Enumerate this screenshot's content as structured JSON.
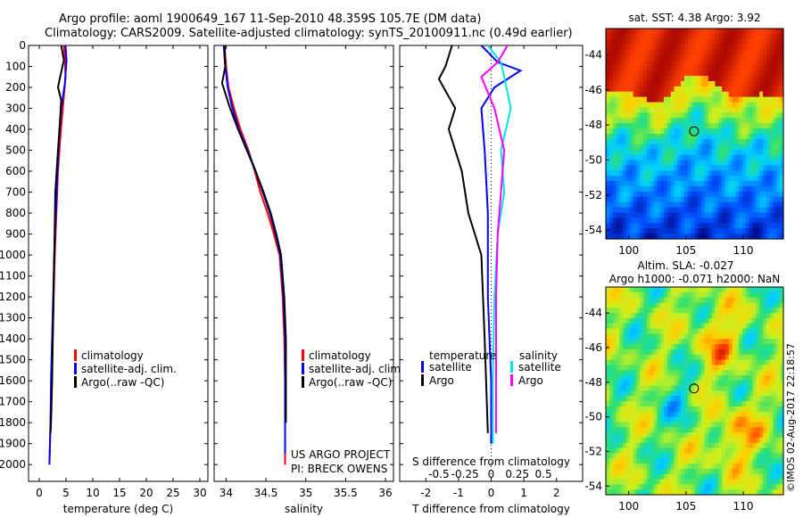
{
  "header": {
    "line1": "Argo profile: aoml 1900649_167 11-Sep-2010 48.359S 105.7E (DM data)",
    "line2": "Climatology: CARS2009. Satellite-adjusted climatology: synTS_20100911.nc (0.49d earlier)"
  },
  "colors": {
    "climatology": "#ff0000",
    "satellite": "#0000ff",
    "argo": "#000000",
    "sat_s": "#00e5e5",
    "argo_s": "#ff00ff"
  },
  "depth_ticks": [
    0,
    100,
    200,
    300,
    400,
    500,
    600,
    700,
    800,
    900,
    1000,
    1100,
    1200,
    1300,
    1400,
    1500,
    1600,
    1700,
    1800,
    1900,
    2000
  ],
  "chart_data": [
    {
      "type": "line",
      "xlabel": "temperature (deg C)",
      "xticks": [
        0,
        5,
        10,
        15,
        20,
        25,
        30
      ],
      "xlim": [
        -2,
        31.5
      ],
      "ylim": [
        2080,
        0
      ],
      "legend": [
        "climatology",
        "satellite-adj. clim.",
        "Argo(..raw -QC)"
      ],
      "series": [
        {
          "name": "climatology",
          "x": [
            4.6,
            4.8,
            4.9,
            4.4,
            3.9,
            3.5,
            3.2,
            2.9,
            2.7,
            2.5,
            2.3,
            2.1,
            1.9
          ],
          "y": [
            0,
            70,
            150,
            300,
            450,
            600,
            800,
            1000,
            1200,
            1400,
            1600,
            1800,
            2000
          ]
        },
        {
          "name": "satellite-adj. clim.",
          "x": [
            4.9,
            5.1,
            4.8,
            4.1,
            3.7,
            3.4,
            3.1,
            2.8,
            2.6,
            2.4,
            2.2,
            2.1,
            1.9
          ],
          "y": [
            0,
            70,
            180,
            300,
            450,
            600,
            800,
            1000,
            1200,
            1400,
            1600,
            1800,
            2000
          ]
        },
        {
          "name": "Argo(..raw -QC)",
          "x": [
            4.1,
            4.6,
            3.9,
            3.5,
            4.1,
            3.9,
            3.5,
            3.0,
            2.8,
            2.6,
            2.4,
            2.2,
            2.1
          ],
          "y": [
            0,
            70,
            150,
            200,
            260,
            350,
            500,
            700,
            1000,
            1300,
            1600,
            1800,
            1850
          ]
        }
      ]
    },
    {
      "type": "line",
      "xlabel": "salinity",
      "xticks": [
        34,
        34.5,
        35,
        35.5,
        36
      ],
      "xlim": [
        33.85,
        36.1
      ],
      "ylim": [
        2080,
        0
      ],
      "legend": [
        "climatology",
        "satellite-adj. clim.",
        "Argo(..raw -QC)"
      ],
      "annotations": [
        "US ARGO PROJECT",
        "PI: BRECK OWENS"
      ],
      "series": [
        {
          "name": "climatology",
          "x": [
            33.98,
            34.0,
            34.03,
            34.1,
            34.18,
            34.28,
            34.36,
            34.43,
            34.52,
            34.6,
            34.67,
            34.71,
            34.73,
            34.74,
            34.74
          ],
          "y": [
            0,
            100,
            200,
            300,
            400,
            500,
            600,
            700,
            800,
            900,
            1000,
            1200,
            1400,
            1600,
            2000
          ]
        },
        {
          "name": "satellite-adj. clim.",
          "x": [
            33.97,
            33.99,
            34.02,
            34.08,
            34.16,
            34.27,
            34.37,
            34.46,
            34.55,
            34.62,
            34.68,
            34.72,
            34.74,
            34.74,
            34.74
          ],
          "y": [
            0,
            100,
            200,
            300,
            400,
            500,
            600,
            700,
            800,
            900,
            1000,
            1200,
            1400,
            1600,
            1950
          ]
        },
        {
          "name": "Argo(..raw -QC)",
          "x": [
            33.98,
            33.99,
            33.95,
            34.05,
            34.15,
            34.26,
            34.37,
            34.47,
            34.56,
            34.63,
            34.69,
            34.73,
            34.75,
            34.75
          ],
          "y": [
            0,
            100,
            180,
            300,
            400,
            500,
            600,
            700,
            800,
            900,
            1000,
            1200,
            1400,
            1800
          ]
        }
      ]
    },
    {
      "type": "line",
      "xlabel": "T difference from climatology",
      "xlabel_top": "S difference from climatology",
      "xticks": [
        -2,
        -1,
        0,
        1,
        2
      ],
      "xticks_top": [
        "-0.5",
        "-0.25",
        "0",
        "0.25",
        "0.5"
      ],
      "xlim": [
        -2.8,
        2.8
      ],
      "ylim": [
        2080,
        0
      ],
      "legend_titles": [
        "temperature",
        "salinity"
      ],
      "legend": [
        "satellite",
        "Argo",
        "satellite",
        "Argo"
      ],
      "series": [
        {
          "name": "satellite",
          "x": [
            -0.3,
            0.2,
            0.9,
            0.1,
            -0.3,
            -0.2,
            -0.1,
            -0.1,
            0.0,
            0.0
          ],
          "y": [
            0,
            80,
            120,
            200,
            300,
            500,
            800,
            1200,
            1600,
            1900
          ]
        },
        {
          "name": "Argo",
          "x": [
            -1.2,
            -1.4,
            -1.6,
            -1.1,
            -1.3,
            -0.9,
            -0.7,
            -0.3,
            -0.2,
            -0.1
          ],
          "y": [
            0,
            100,
            160,
            300,
            400,
            600,
            800,
            1000,
            1400,
            1850
          ]
        },
        {
          "name": "satellite",
          "x": [
            -0.1,
            0.3,
            0.4,
            0.6,
            0.3,
            0.4,
            0.2,
            0.1,
            0.05,
            0.05
          ],
          "y": [
            0,
            80,
            150,
            300,
            500,
            700,
            900,
            1200,
            1600,
            1900
          ]
        },
        {
          "name": "Argo",
          "x": [
            0.5,
            0.2,
            -0.3,
            0.1,
            0.4,
            0.3,
            0.2,
            0.15,
            0.15,
            0.15
          ],
          "y": [
            0,
            80,
            150,
            300,
            500,
            700,
            900,
            1200,
            1600,
            1850
          ]
        }
      ]
    },
    {
      "type": "heatmap",
      "title": "sat. SST: 4.38 Argo: 3.92",
      "xticks": [
        100,
        105,
        110
      ],
      "yticks": [
        -44,
        -46,
        -48,
        -50,
        -52,
        -54
      ],
      "xlim": [
        98,
        113.5
      ],
      "ylim": [
        -54.5,
        -42.5
      ],
      "marker": {
        "lon": 105.7,
        "lat": -48.359
      }
    },
    {
      "type": "heatmap",
      "title_line1": "Altim. SLA: -0.027",
      "title_line2": "Argo h1000: -0.071 h2000: NaN",
      "credit": "©IMOS 02-Aug-2017 22:18:57",
      "xticks": [
        100,
        105,
        110
      ],
      "yticks": [
        -44,
        -46,
        -48,
        -50,
        -52,
        -54
      ],
      "xlim": [
        98,
        113.5
      ],
      "ylim": [
        -54.5,
        -42.5
      ],
      "marker": {
        "lon": 105.7,
        "lat": -48.359
      }
    }
  ]
}
